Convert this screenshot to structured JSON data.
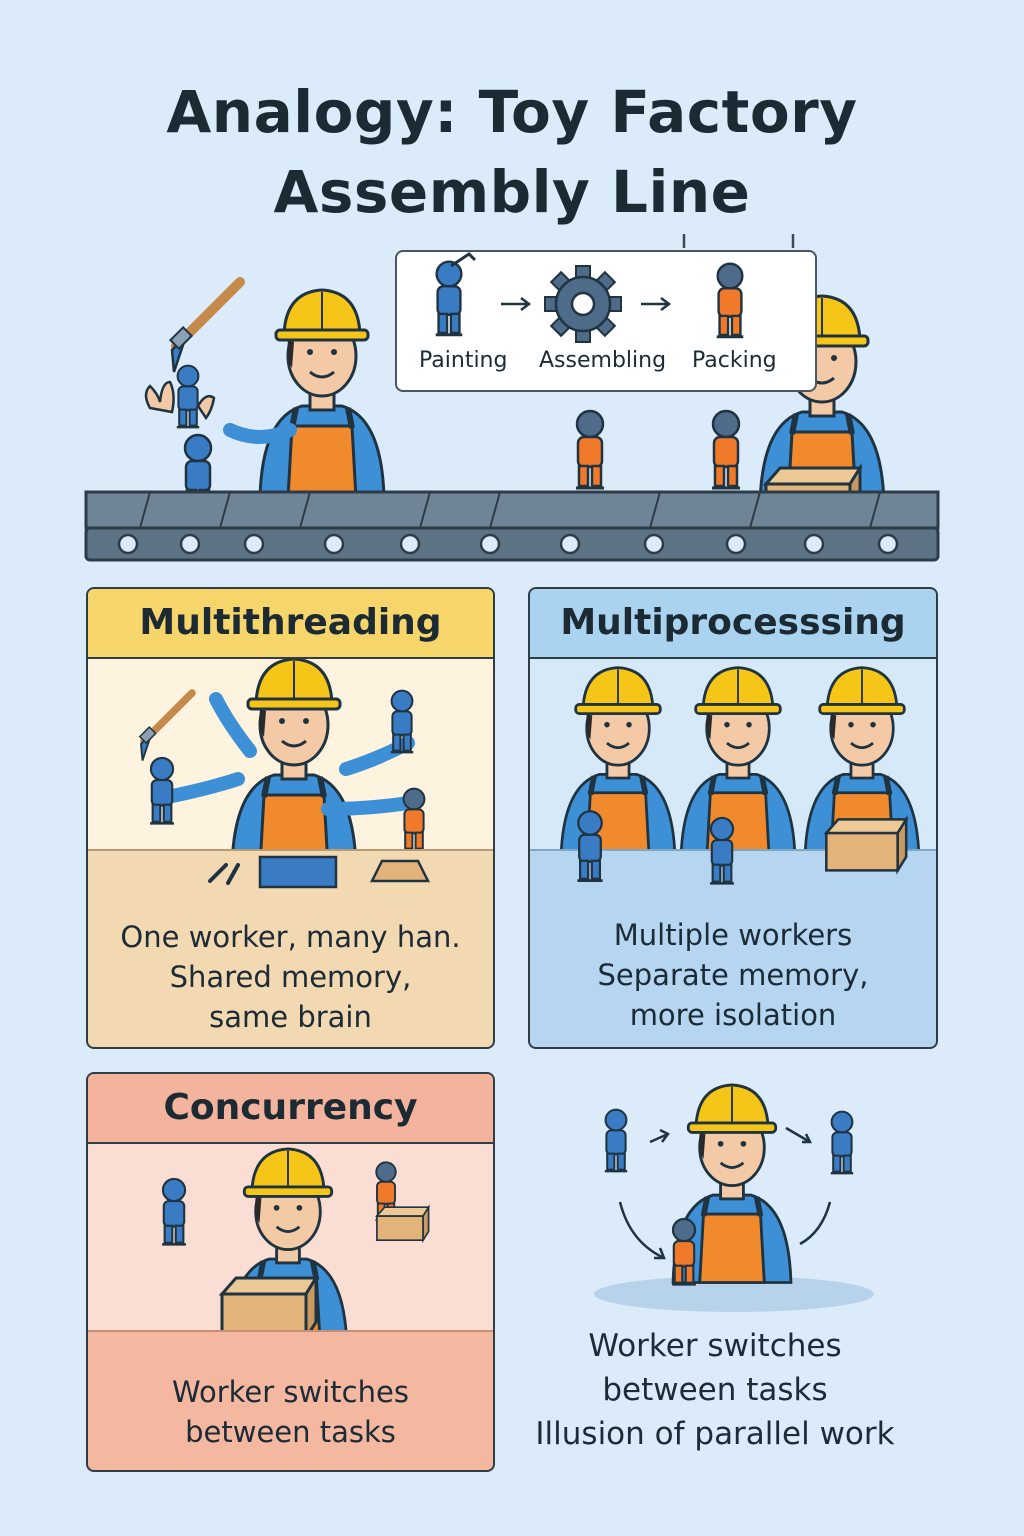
{
  "title": {
    "line1": "Analogy: Toy Factory",
    "line2": "Assembly Line"
  },
  "pipeline": {
    "steps": [
      {
        "label": "Painting",
        "icon": "painted-toy-icon"
      },
      {
        "label": "Assembling",
        "icon": "gear-icon"
      },
      {
        "label": "Packing",
        "icon": "orange-toy-icon"
      }
    ],
    "arrow_icon": "arrow-right-icon"
  },
  "panels": {
    "multithreading": {
      "heading": "Multithreading",
      "lines": [
        "One worker, many han.",
        "Shared memory,",
        "same brain"
      ]
    },
    "multiprocessing": {
      "heading": "Multiprocesssing",
      "lines": [
        "Multiple workers",
        "Separate memory,",
        "more isolation"
      ]
    },
    "concurrency": {
      "heading": "Concurrency",
      "lines": [
        "Worker switches",
        "between tasks"
      ]
    }
  },
  "switching": {
    "lines": [
      "Worker switches",
      "between tasks",
      "Illusion of parallel work"
    ]
  },
  "colors": {
    "background": "#dcebfa",
    "multithreading_head": "#f6d56b",
    "multiprocessing_head": "#a9d3ef",
    "concurrency_head": "#f3b39c",
    "worker_shirt": "#3d8fd6",
    "worker_apron": "#f18a2d",
    "hard_hat": "#f5c518",
    "toy_blue": "#3a7cc4",
    "toy_orange": "#f07a2a",
    "conveyor": "#5d7385"
  }
}
